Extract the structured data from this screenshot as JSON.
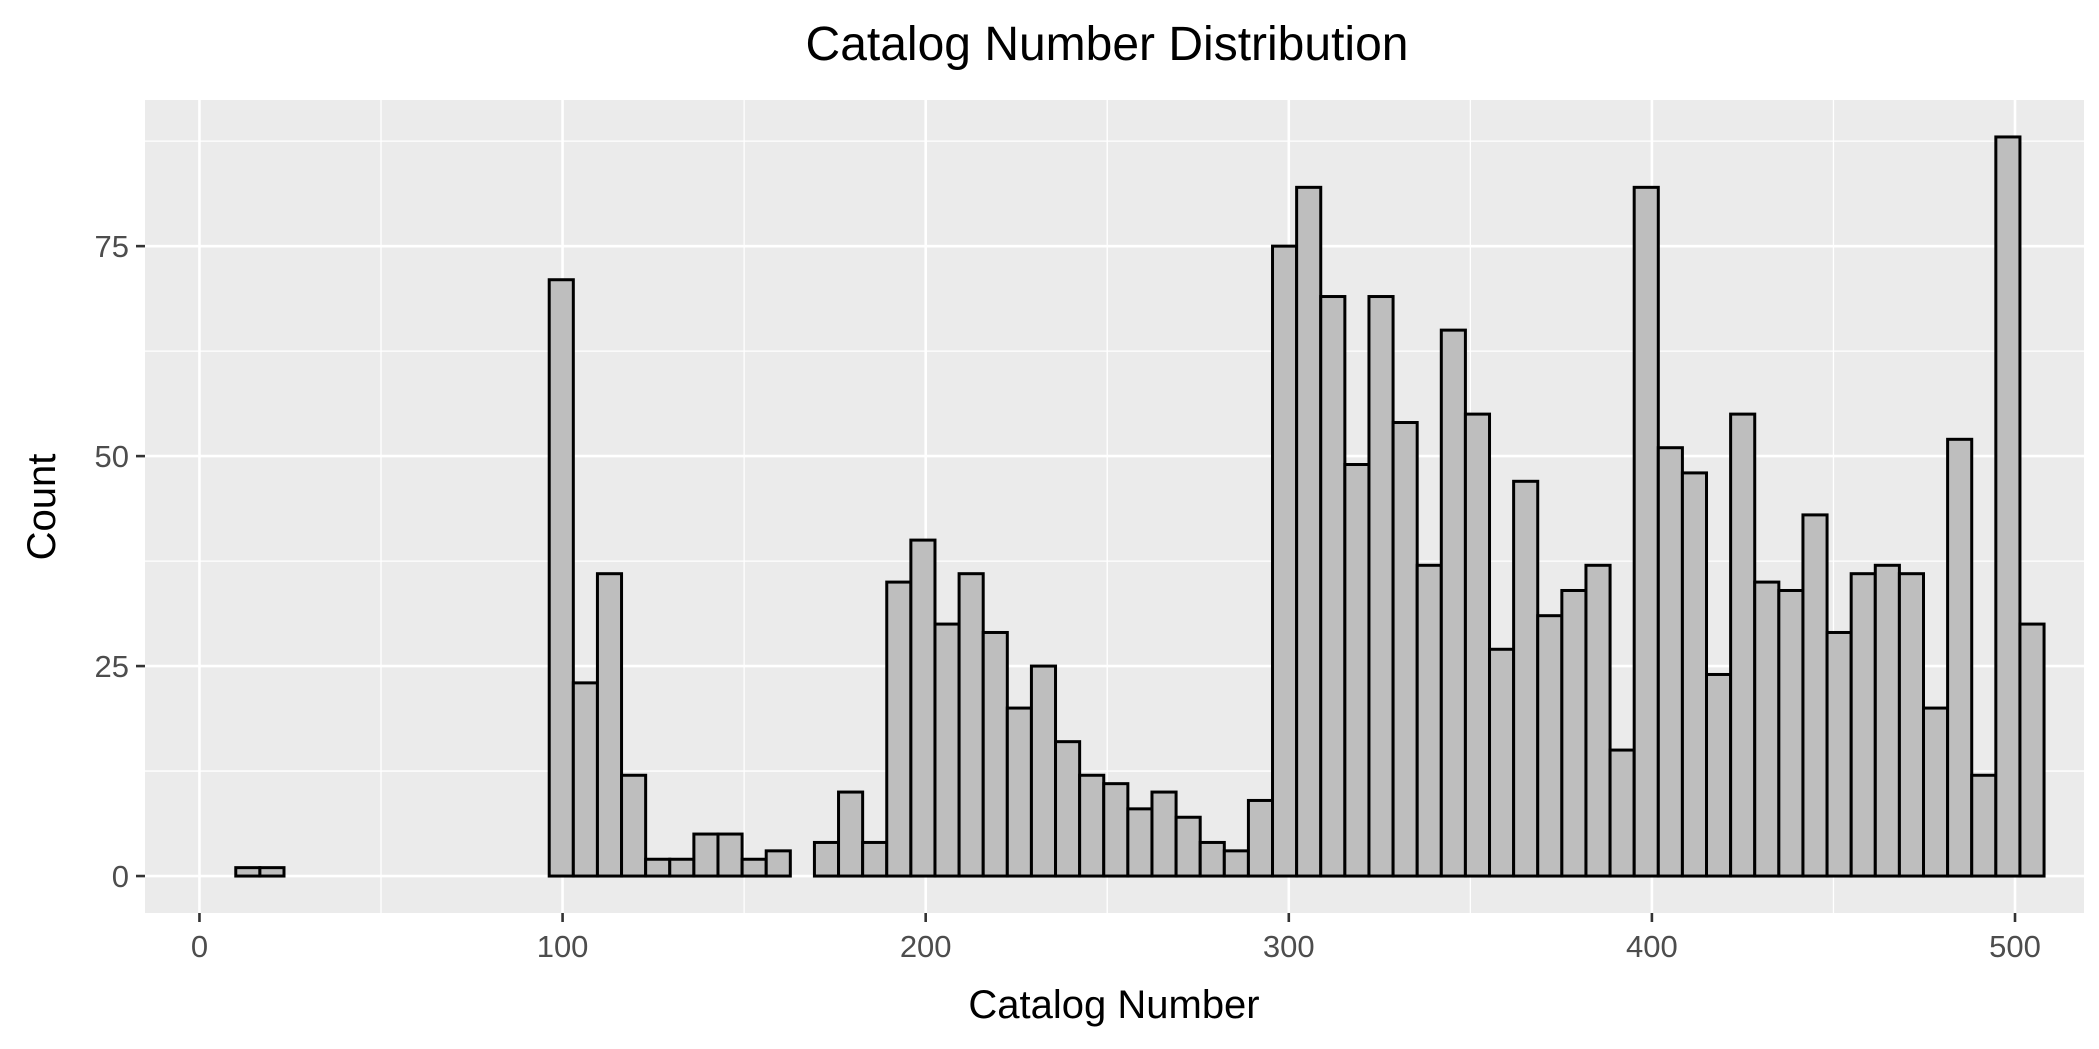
{
  "chart_data": {
    "type": "bar",
    "title": "Catalog Number Distribution",
    "xlabel": "Catalog Number",
    "ylabel": "Count",
    "xlim": [
      -15,
      519
    ],
    "ylim": [
      -4.4,
      92.4
    ],
    "x_ticks": [
      0,
      100,
      200,
      300,
      400,
      500
    ],
    "x_tick_labels": [
      "0",
      "100",
      "200",
      "300",
      "400",
      "500"
    ],
    "y_ticks": [
      0,
      25,
      50,
      75
    ],
    "y_tick_labels": [
      "0",
      "25",
      "50",
      "75"
    ],
    "grid": true,
    "bin_width": 6.64,
    "bin_start": 10.0,
    "bar_fill": "#bebebe",
    "bar_outline": "#000000",
    "panel_background": "#ebebeb",
    "grid_color": "#ffffff",
    "values": [
      1,
      1,
      0,
      0,
      0,
      0,
      0,
      0,
      0,
      0,
      0,
      0,
      0,
      71,
      23,
      36,
      12,
      2,
      2,
      5,
      5,
      2,
      3,
      0,
      4,
      10,
      4,
      35,
      40,
      30,
      36,
      29,
      20,
      25,
      16,
      12,
      11,
      8,
      10,
      7,
      4,
      3,
      9,
      75,
      82,
      69,
      49,
      69,
      54,
      37,
      65,
      55,
      27,
      47,
      31,
      34,
      37,
      15,
      82,
      51,
      48,
      24,
      55,
      35,
      34,
      43,
      29,
      36,
      37,
      36,
      20,
      52,
      12,
      88,
      30
    ]
  }
}
